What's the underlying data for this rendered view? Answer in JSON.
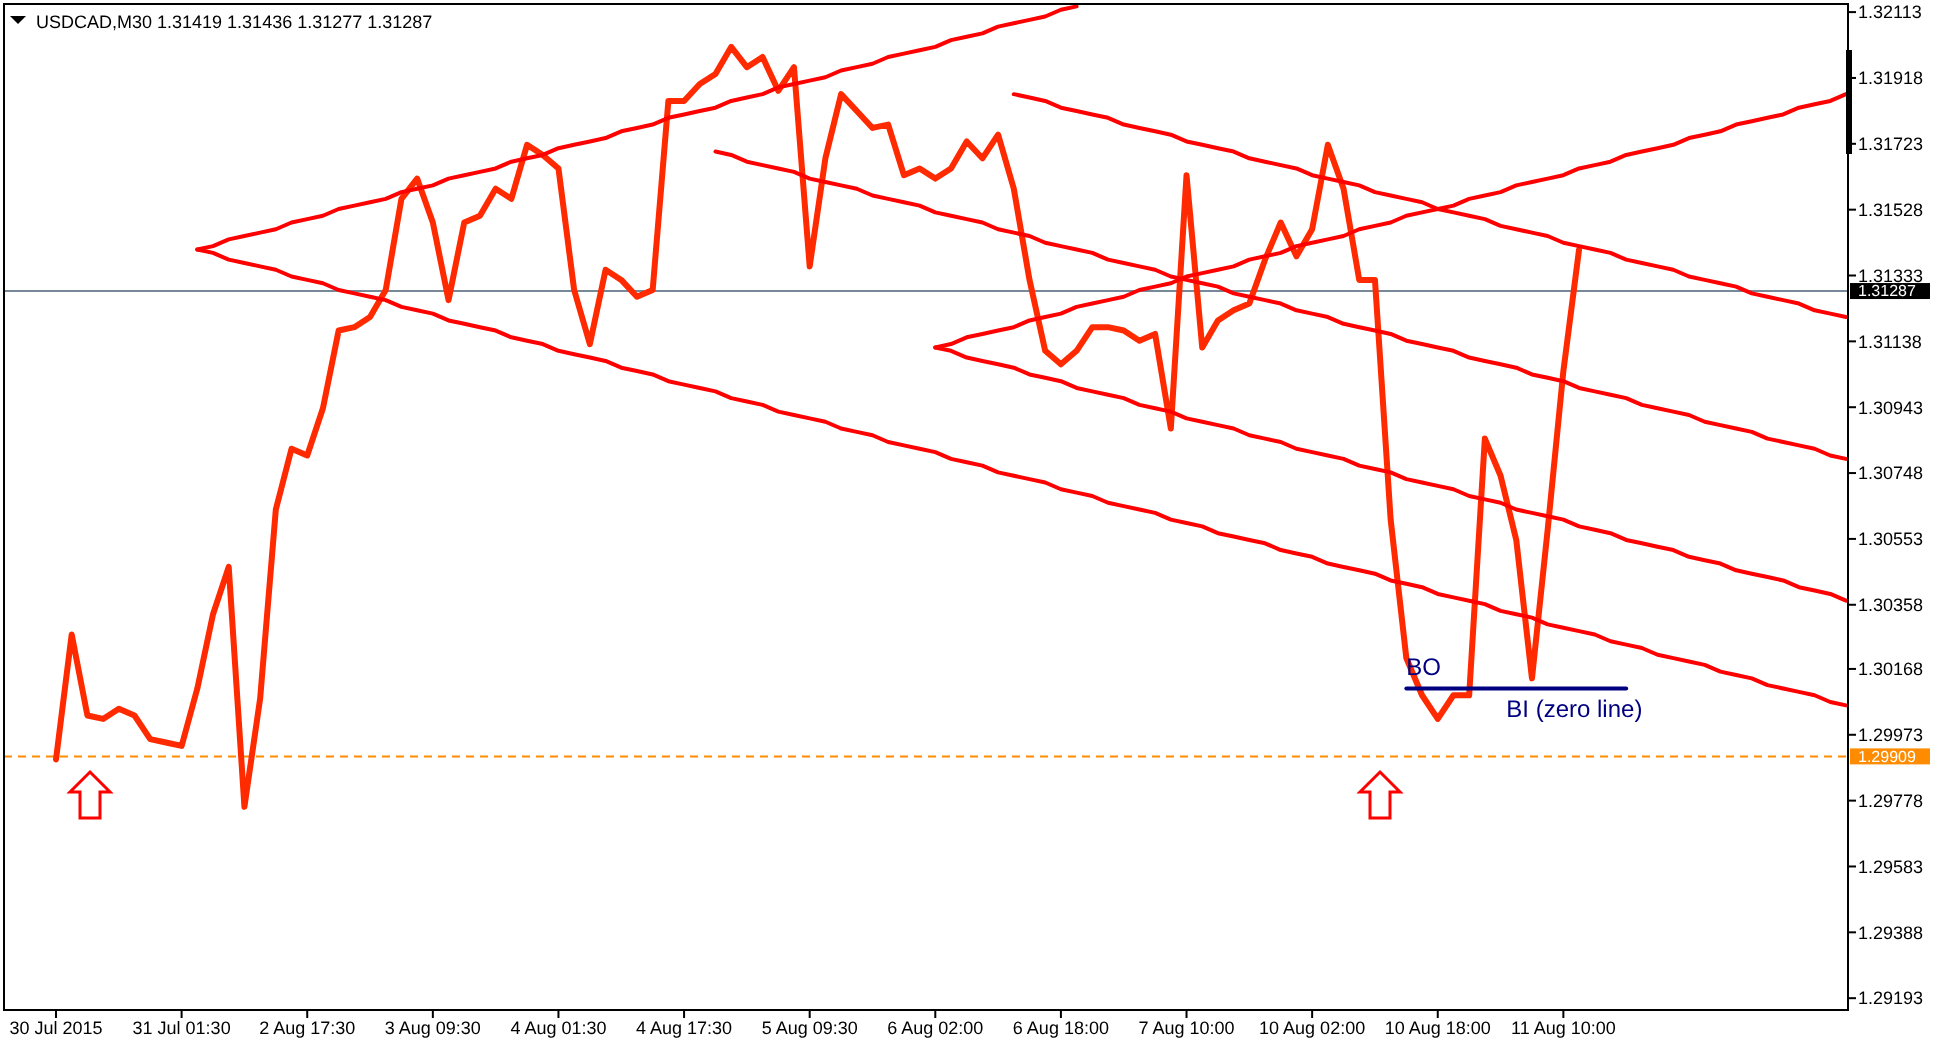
{
  "chart_data": {
    "type": "line",
    "title": "USDCAD,M30  1.31419 1.31436 1.31277 1.31287",
    "categories": [
      "30 Jul 2015",
      null,
      null,
      null,
      null,
      null,
      null,
      null,
      "31 Jul 01:30",
      null,
      null,
      null,
      null,
      null,
      null,
      null,
      "2 Aug 17:30",
      null,
      null,
      null,
      null,
      null,
      null,
      null,
      "3 Aug 09:30",
      null,
      null,
      null,
      null,
      null,
      null,
      null,
      "4 Aug 01:30",
      null,
      null,
      null,
      null,
      null,
      null,
      null,
      "4 Aug 17:30",
      null,
      null,
      null,
      null,
      null,
      null,
      null,
      "5 Aug 09:30",
      null,
      null,
      null,
      null,
      null,
      null,
      null,
      "6 Aug 02:00",
      null,
      null,
      null,
      null,
      null,
      null,
      null,
      "6 Aug 18:00",
      null,
      null,
      null,
      null,
      null,
      null,
      null,
      "7 Aug 10:00",
      null,
      null,
      null,
      null,
      null,
      null,
      null,
      "10 Aug 02:00",
      null,
      null,
      null,
      null,
      null,
      null,
      null,
      "10 Aug 18:00",
      null,
      null,
      null,
      null,
      null,
      null,
      null,
      "11 Aug 10:00",
      null,
      null,
      null,
      null,
      null,
      null,
      null,
      null,
      null,
      null,
      null,
      null,
      null,
      null,
      null,
      null,
      null,
      null
    ],
    "ylim": [
      1.29158,
      1.32137
    ],
    "yticks": [
      1.29193,
      1.29388,
      1.29583,
      1.29778,
      1.29973,
      1.30168,
      1.30358,
      1.30553,
      1.30748,
      1.30943,
      1.31138,
      1.31333,
      1.31528,
      1.31723,
      1.31918,
      1.32113
    ],
    "marker": "none",
    "line_style": "solid",
    "series": [
      {
        "color": "#ff2a00",
        "values": [
          1.299,
          1.3027,
          1.3003,
          1.3002,
          1.3005,
          1.3003,
          1.2996,
          1.2995,
          1.2994,
          1.3011,
          1.3033,
          1.3047,
          1.2976,
          1.3008,
          1.3064,
          1.3082,
          1.308,
          1.3094,
          1.3117,
          1.3118,
          1.3121,
          1.3129,
          1.3156,
          1.3162,
          1.3149,
          1.3126,
          1.3149,
          1.3151,
          1.3159,
          1.3156,
          1.3172,
          1.3169,
          1.3165,
          1.3129,
          1.3113,
          1.3135,
          1.3132,
          1.3127,
          1.3129,
          1.3185,
          1.3185,
          1.319,
          1.3193,
          1.3201,
          1.3195,
          1.3198,
          1.3188,
          1.3195,
          1.3136,
          1.3168,
          1.3187,
          1.3182,
          1.3177,
          1.3178,
          1.3163,
          1.3165,
          1.3162,
          1.3165,
          1.3173,
          1.3168,
          1.3175,
          1.3159,
          1.3132,
          1.3111,
          1.3107,
          1.3111,
          1.3118,
          1.3118,
          1.3117,
          1.3114,
          1.3116,
          1.3088,
          1.3163,
          1.3112,
          1.312,
          1.3123,
          1.3125,
          1.3138,
          1.3149,
          1.3139,
          1.3147,
          1.3172,
          1.3159,
          1.3132,
          1.3132,
          1.3061,
          1.302,
          1.3009,
          1.3002,
          1.3009,
          1.3009,
          1.3085,
          1.3074,
          1.3055,
          1.3014,
          1.3058,
          1.3105,
          1.3141,
          null,
          null,
          null,
          null,
          null,
          null,
          null,
          null,
          null,
          null,
          null,
          null,
          null,
          null,
          null,
          null,
          null
        ]
      },
      {
        "color": "#ff0000",
        "values": [
          null,
          null,
          null,
          null,
          null,
          null,
          null,
          null,
          null,
          1.3141,
          1.3142,
          1.3144,
          1.3145,
          1.3146,
          1.3147,
          1.3149,
          1.315,
          1.3151,
          1.3153,
          1.3154,
          1.3155,
          1.3156,
          1.3158,
          1.3159,
          1.316,
          1.3162,
          1.3163,
          1.3164,
          1.3165,
          1.3167,
          1.3168,
          1.3169,
          1.3171,
          1.3172,
          1.3173,
          1.3174,
          1.3176,
          1.3177,
          1.3178,
          1.318,
          1.3181,
          1.3182,
          1.3183,
          1.3185,
          1.3186,
          1.3187,
          1.3189,
          1.319,
          1.3191,
          1.3192,
          1.3194,
          1.3195,
          1.3196,
          1.3198,
          1.3199,
          1.32,
          1.3201,
          1.3203,
          1.3204,
          1.3205,
          1.3207,
          1.3208,
          1.3209,
          1.321,
          1.3212,
          1.3213,
          null,
          null,
          null,
          null,
          null,
          null,
          null,
          null,
          null,
          null,
          null,
          null,
          null,
          null,
          null,
          null,
          null,
          null,
          null,
          null,
          null,
          null,
          null,
          null,
          null,
          null,
          null,
          null,
          null,
          null,
          null,
          null,
          null,
          null,
          null,
          null,
          null,
          null,
          null,
          null,
          null,
          null,
          null,
          null,
          null,
          null,
          null,
          null,
          null
        ]
      },
      {
        "color": "#ff0000",
        "values": [
          null,
          null,
          null,
          null,
          null,
          null,
          null,
          null,
          null,
          1.3141,
          1.314,
          1.3138,
          1.3137,
          1.3136,
          1.3135,
          1.3133,
          1.3132,
          1.3131,
          1.3129,
          1.3128,
          1.3127,
          1.3126,
          1.3124,
          1.3123,
          1.3122,
          1.312,
          1.3119,
          1.3118,
          1.3117,
          1.3115,
          1.3114,
          1.3113,
          1.3111,
          1.311,
          1.3109,
          1.3108,
          1.3106,
          1.3105,
          1.3104,
          1.3102,
          1.3101,
          1.31,
          1.3099,
          1.3097,
          1.3096,
          1.3095,
          1.3093,
          1.3092,
          1.3091,
          1.309,
          1.3088,
          1.3087,
          1.3086,
          1.3084,
          1.3083,
          1.3082,
          1.3081,
          1.3079,
          1.3078,
          1.3077,
          1.3075,
          1.3074,
          1.3073,
          1.3072,
          1.307,
          1.3069,
          1.3068,
          1.3066,
          1.3065,
          1.3064,
          1.3063,
          1.3061,
          1.306,
          1.3059,
          1.3057,
          1.3056,
          1.3055,
          1.3054,
          1.3052,
          1.3051,
          1.305,
          1.3048,
          1.3047,
          1.3046,
          1.3045,
          1.3043,
          1.3042,
          1.3041,
          1.3039,
          1.3038,
          1.3037,
          1.3036,
          1.3034,
          1.3033,
          1.3032,
          1.303,
          1.3029,
          1.3028,
          1.3027,
          1.3025,
          1.3024,
          1.3023,
          1.3021,
          1.302,
          1.3019,
          1.3018,
          1.3016,
          1.3015,
          1.3014,
          1.3012,
          1.3011,
          1.301,
          1.3009,
          1.3007,
          1.3006
        ]
      },
      {
        "color": "#ff0000",
        "values": [
          null,
          null,
          null,
          null,
          null,
          null,
          null,
          null,
          null,
          null,
          null,
          null,
          null,
          null,
          null,
          null,
          null,
          null,
          null,
          null,
          null,
          null,
          null,
          null,
          null,
          null,
          null,
          null,
          null,
          null,
          null,
          null,
          null,
          null,
          null,
          null,
          null,
          null,
          null,
          null,
          null,
          null,
          null,
          null,
          null,
          null,
          null,
          null,
          null,
          null,
          null,
          null,
          null,
          null,
          null,
          null,
          null,
          null,
          null,
          null,
          null,
          1.3187,
          1.3186,
          1.3185,
          1.3183,
          1.3182,
          1.3181,
          1.318,
          1.3178,
          1.3177,
          1.3176,
          1.3175,
          1.3173,
          1.3172,
          1.3171,
          1.317,
          1.3168,
          1.3167,
          1.3166,
          1.3165,
          1.3163,
          1.3162,
          1.3161,
          1.316,
          1.3158,
          1.3157,
          1.3156,
          1.3155,
          1.3153,
          1.3152,
          1.3151,
          1.315,
          1.3148,
          1.3147,
          1.3146,
          1.3145,
          1.3143,
          1.3142,
          1.3141,
          1.314,
          1.3138,
          1.3137,
          1.3136,
          1.3135,
          1.3133,
          1.3132,
          1.3131,
          1.313,
          1.3128,
          1.3127,
          1.3126,
          1.3125,
          1.3123,
          1.3122,
          1.3121
        ]
      },
      {
        "color": "#ff0000",
        "values": [
          null,
          null,
          null,
          null,
          null,
          null,
          null,
          null,
          null,
          null,
          null,
          null,
          null,
          null,
          null,
          null,
          null,
          null,
          null,
          null,
          null,
          null,
          null,
          null,
          null,
          null,
          null,
          null,
          null,
          null,
          null,
          null,
          null,
          null,
          null,
          null,
          null,
          null,
          null,
          null,
          null,
          null,
          1.317,
          1.3169,
          1.3167,
          1.3166,
          1.3165,
          1.3164,
          1.3162,
          1.3161,
          1.316,
          1.3159,
          1.3157,
          1.3156,
          1.3155,
          1.3154,
          1.3152,
          1.3151,
          1.315,
          1.3149,
          1.3147,
          1.3146,
          1.3145,
          1.3143,
          1.3142,
          1.3141,
          1.314,
          1.3138,
          1.3137,
          1.3136,
          1.3135,
          1.3133,
          1.3132,
          1.3131,
          1.313,
          1.3128,
          1.3127,
          1.3126,
          1.3125,
          1.3123,
          1.3122,
          1.3121,
          1.3119,
          1.3118,
          1.3117,
          1.3116,
          1.3114,
          1.3113,
          1.3112,
          1.3111,
          1.3109,
          1.3108,
          1.3107,
          1.3106,
          1.3104,
          1.3103,
          1.3102,
          1.31,
          1.3099,
          1.3098,
          1.3097,
          1.3095,
          1.3094,
          1.3093,
          1.3092,
          1.309,
          1.3089,
          1.3088,
          1.3087,
          1.3085,
          1.3084,
          1.3083,
          1.3082,
          1.308,
          1.3079
        ]
      },
      {
        "color": "#ff0000",
        "values": [
          null,
          null,
          null,
          null,
          null,
          null,
          null,
          null,
          null,
          null,
          null,
          null,
          null,
          null,
          null,
          null,
          null,
          null,
          null,
          null,
          null,
          null,
          null,
          null,
          null,
          null,
          null,
          null,
          null,
          null,
          null,
          null,
          null,
          null,
          null,
          null,
          null,
          null,
          null,
          null,
          null,
          null,
          null,
          null,
          null,
          null,
          null,
          null,
          null,
          null,
          null,
          null,
          null,
          null,
          null,
          null,
          1.3112,
          1.3111,
          1.3109,
          1.3108,
          1.3107,
          1.3106,
          1.3104,
          1.3103,
          1.3102,
          1.31,
          1.3099,
          1.3098,
          1.3097,
          1.3095,
          1.3094,
          1.3093,
          1.3091,
          1.309,
          1.3089,
          1.3088,
          1.3086,
          1.3085,
          1.3084,
          1.3082,
          1.3081,
          1.308,
          1.3079,
          1.3077,
          1.3076,
          1.3075,
          1.3073,
          1.3072,
          1.3071,
          1.307,
          1.3068,
          1.3067,
          1.3066,
          1.3064,
          1.3063,
          1.3062,
          1.3061,
          1.3059,
          1.3058,
          1.3057,
          1.3055,
          1.3054,
          1.3053,
          1.3052,
          1.305,
          1.3049,
          1.3048,
          1.3046,
          1.3045,
          1.3044,
          1.3043,
          1.3041,
          1.304,
          1.3039,
          1.3037
        ]
      },
      {
        "color": "#ff0000",
        "values": [
          null,
          null,
          null,
          null,
          null,
          null,
          null,
          null,
          null,
          null,
          null,
          null,
          null,
          null,
          null,
          null,
          null,
          null,
          null,
          null,
          null,
          null,
          null,
          null,
          null,
          null,
          null,
          null,
          null,
          null,
          null,
          null,
          null,
          null,
          null,
          null,
          null,
          null,
          null,
          null,
          null,
          null,
          null,
          null,
          null,
          null,
          null,
          null,
          null,
          null,
          null,
          null,
          null,
          null,
          null,
          null,
          1.3112,
          1.3113,
          1.3115,
          1.3116,
          1.3117,
          1.3118,
          1.312,
          1.3121,
          1.3122,
          1.3124,
          1.3125,
          1.3126,
          1.3127,
          1.3129,
          1.313,
          1.3131,
          1.3133,
          1.3134,
          1.3135,
          1.3136,
          1.3138,
          1.3139,
          1.314,
          1.3142,
          1.3143,
          1.3144,
          1.3145,
          1.3147,
          1.3148,
          1.3149,
          1.3151,
          1.3152,
          1.3153,
          1.3154,
          1.3156,
          1.3157,
          1.3158,
          1.316,
          1.3161,
          1.3162,
          1.3163,
          1.3165,
          1.3166,
          1.3167,
          1.3169,
          1.317,
          1.3171,
          1.3172,
          1.3174,
          1.3175,
          1.3176,
          1.3178,
          1.3179,
          1.318,
          1.3181,
          1.3183,
          1.3184,
          1.3185,
          1.3187
        ]
      },
      {
        "color": "#000080",
        "values": [
          null,
          null,
          null,
          null,
          null,
          null,
          null,
          null,
          null,
          null,
          null,
          null,
          null,
          null,
          null,
          null,
          null,
          null,
          null,
          null,
          null,
          null,
          null,
          null,
          null,
          null,
          null,
          null,
          null,
          null,
          null,
          null,
          null,
          null,
          null,
          null,
          null,
          null,
          null,
          null,
          null,
          null,
          null,
          null,
          null,
          null,
          null,
          null,
          null,
          null,
          null,
          null,
          null,
          null,
          null,
          null,
          null,
          null,
          null,
          null,
          null,
          null,
          null,
          null,
          null,
          null,
          null,
          null,
          null,
          null,
          null,
          null,
          null,
          null,
          null,
          null,
          null,
          null,
          null,
          null,
          null,
          null,
          null,
          null,
          null,
          null,
          1.3011,
          1.3011,
          1.3011,
          1.3011,
          1.3011,
          1.3011,
          1.3011,
          1.3011,
          1.3011,
          1.3011,
          1.3011,
          1.3011,
          1.3011,
          1.3011,
          1.3011,
          null,
          null,
          null,
          null,
          null,
          null,
          null,
          null,
          null,
          null,
          null,
          null,
          null,
          null
        ]
      }
    ],
    "ref_lines": [
      {
        "axis": "y",
        "value": 1.31287,
        "label": "1.31287",
        "color": "#778899",
        "line_style": "solid"
      },
      {
        "axis": "y",
        "value": 1.29909,
        "label": "1.29909",
        "color": "#ff8c00",
        "line_style": "dashed"
      }
    ],
    "annotations": [
      {
        "text": "BO",
        "y": 1.3011
      },
      "BI (zero line)"
    ]
  }
}
